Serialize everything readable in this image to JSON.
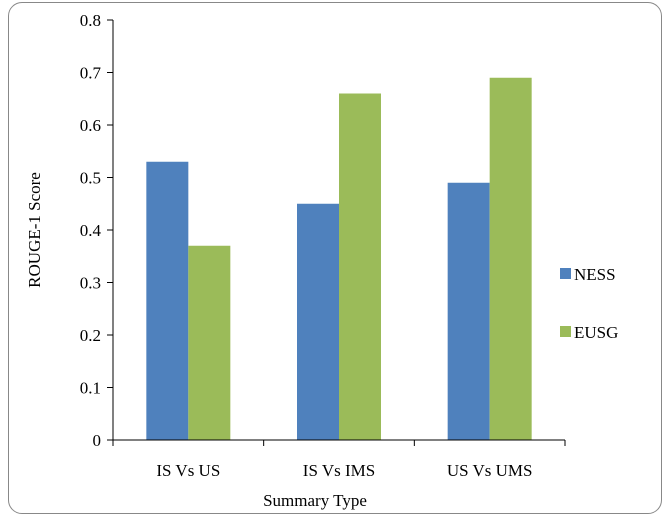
{
  "chart_data": {
    "type": "bar",
    "title": "",
    "xlabel": "Summary Type",
    "ylabel": "ROUGE-1 Score",
    "categories": [
      "IS Vs US",
      "IS Vs IMS",
      "US Vs UMS"
    ],
    "series": [
      {
        "name": "NESS",
        "color": "#4f81bd",
        "values": [
          0.53,
          0.45,
          0.49
        ]
      },
      {
        "name": "EUSG",
        "color": "#9bbb59",
        "values": [
          0.37,
          0.66,
          0.69
        ]
      }
    ],
    "ylim": [
      0,
      0.8
    ],
    "yticks": [
      "0",
      "0.1",
      "0.2",
      "0.3",
      "0.4",
      "0.5",
      "0.6",
      "0.7",
      "0.8"
    ],
    "grid": false,
    "legend_position": "right"
  }
}
